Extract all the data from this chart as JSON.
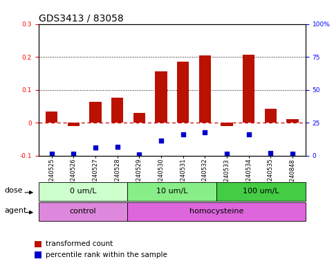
{
  "title": "GDS3413 / 83058",
  "samples": [
    "GSM240525",
    "GSM240526",
    "GSM240527",
    "GSM240528",
    "GSM240529",
    "GSM240530",
    "GSM240531",
    "GSM240532",
    "GSM240533",
    "GSM240534",
    "GSM240535",
    "GSM240848"
  ],
  "transformed_count": [
    0.033,
    -0.01,
    0.063,
    0.075,
    0.03,
    0.155,
    0.185,
    0.205,
    -0.01,
    0.207,
    0.042,
    0.01
  ],
  "percentile_rank_display": [
    -0.095,
    -0.095,
    -0.075,
    -0.073,
    -0.097,
    -0.055,
    -0.035,
    -0.03,
    -0.095,
    -0.035,
    -0.092,
    -0.095
  ],
  "bar_color": "#bb1100",
  "dot_color": "#0000cc",
  "ylim_left": [
    -0.1,
    0.3
  ],
  "ylim_right": [
    0,
    100
  ],
  "yticks_left": [
    -0.1,
    0.0,
    0.1,
    0.2,
    0.3
  ],
  "ytick_labels_left": [
    "-0.1",
    "0",
    "0.1",
    "0.2",
    "0.3"
  ],
  "yticks_right": [
    0,
    25,
    50,
    75,
    100
  ],
  "ytick_labels_right": [
    "0",
    "25",
    "50",
    "75",
    "100%"
  ],
  "hlines": [
    0.1,
    0.2
  ],
  "zero_line_color": "#cc0000",
  "dose_groups": [
    {
      "label": "0 um/L",
      "start": 0,
      "end": 4,
      "color": "#ccffcc"
    },
    {
      "label": "10 um/L",
      "start": 4,
      "end": 8,
      "color": "#88ee88"
    },
    {
      "label": "100 um/L",
      "start": 8,
      "end": 12,
      "color": "#44cc44"
    }
  ],
  "agent_groups": [
    {
      "label": "control",
      "start": 0,
      "end": 4,
      "color": "#dd88dd"
    },
    {
      "label": "homocysteine",
      "start": 4,
      "end": 12,
      "color": "#dd66dd"
    }
  ],
  "dose_label": "dose",
  "agent_label": "agent",
  "legend_red": "transformed count",
  "legend_blue": "percentile rank within the sample",
  "bg_color": "#ffffff",
  "title_fontsize": 10,
  "tick_fontsize": 6.5,
  "row_label_fontsize": 8,
  "row_content_fontsize": 8
}
